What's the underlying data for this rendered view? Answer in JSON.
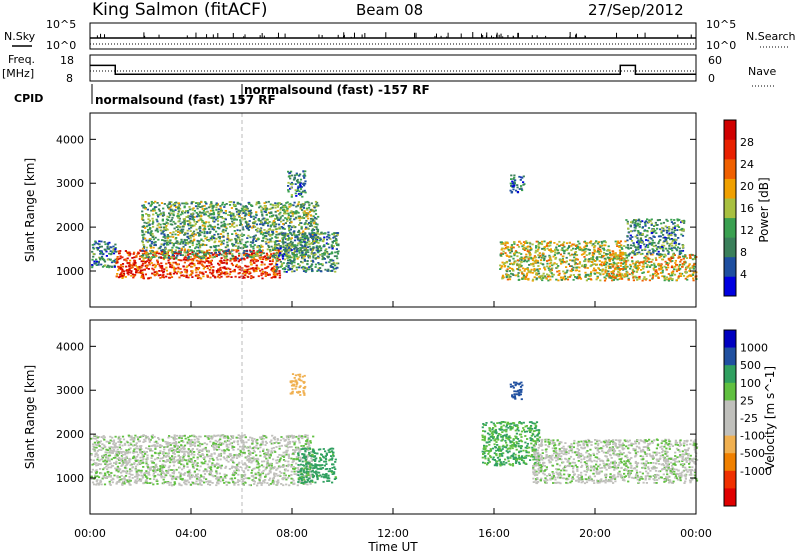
{
  "header": {
    "station": "King Salmon (fitACF)",
    "beam": "Beam 08",
    "date": "27/Sep/2012"
  },
  "strips": {
    "nsky_label": "N.Sky",
    "nsky_ticks": [
      "10^5",
      "10^0"
    ],
    "nsearch_label": "N.Search",
    "nsearch_ticks": [
      "10^5",
      "10^0"
    ],
    "freq_label": "Freq.",
    "freq_unit": "[MHz]",
    "freq_ticks": [
      18,
      8
    ],
    "nave_label": "Nave",
    "nave_ticks": [
      60,
      0
    ],
    "cpid_label": "CPID",
    "cpid_modes": [
      "normalsound (fast) 157 RF",
      "normalsound (fast) -157 RF"
    ],
    "freq_steps": [
      {
        "t0": 0.0,
        "t1": 1.0,
        "mhz": 14.0
      },
      {
        "t0": 1.0,
        "t1": 21.0,
        "mhz": 10.6
      },
      {
        "t0": 21.0,
        "t1": 21.6,
        "mhz": 14.0
      },
      {
        "t0": 21.6,
        "t1": 24.0,
        "mhz": 10.6
      }
    ]
  },
  "colors": {
    "power": [
      "#0000e0",
      "#1e4fa0",
      "#3a7f5a",
      "#3aa050",
      "#a8c040",
      "#f0a000",
      "#f06000",
      "#e82000",
      "#d00000"
    ],
    "velocity": [
      "#e00000",
      "#f03000",
      "#f08000",
      "#f0b050",
      "#c0c0bc",
      "#c0c0bc",
      "#60c040",
      "#30a060",
      "#2050a0",
      "#0000c0"
    ]
  },
  "chart_data": [
    {
      "type": "heatmap",
      "name": "power",
      "ylabel": "Slant Range [km]",
      "xlim": [
        0,
        24
      ],
      "ylim": [
        180,
        4600
      ],
      "yticks": [
        1000,
        2000,
        3000,
        4000
      ],
      "colorbar": {
        "label": "Power [dB]",
        "range": [
          0,
          32
        ],
        "ticks": [
          4,
          8,
          12,
          16,
          20,
          24,
          28
        ]
      },
      "echo_bands": [
        {
          "time": [
            0.0,
            1.0
          ],
          "range": [
            1100,
            1700
          ],
          "power": 9
        },
        {
          "time": [
            1.0,
            7.5
          ],
          "range": [
            850,
            1500
          ],
          "power": 26
        },
        {
          "time": [
            2.0,
            9.0
          ],
          "range": [
            1300,
            2600
          ],
          "power": 12
        },
        {
          "time": [
            7.3,
            9.8
          ],
          "range": [
            1000,
            1900
          ],
          "power": 10
        },
        {
          "time": [
            7.8,
            8.5
          ],
          "range": [
            2700,
            3300
          ],
          "power": 9
        },
        {
          "time": [
            16.2,
            21.2
          ],
          "range": [
            800,
            1700
          ],
          "power": 16
        },
        {
          "time": [
            16.6,
            17.2
          ],
          "range": [
            2800,
            3200
          ],
          "power": 7
        },
        {
          "time": [
            20.5,
            24.0
          ],
          "range": [
            800,
            1400
          ],
          "power": 18
        },
        {
          "time": [
            21.2,
            23.5
          ],
          "range": [
            1400,
            2200
          ],
          "power": 10
        }
      ]
    },
    {
      "type": "heatmap",
      "name": "velocity",
      "xlabel": "Time UT",
      "ylabel": "Slant Range [km]",
      "xlim": [
        0,
        24
      ],
      "ylim": [
        180,
        4600
      ],
      "xticks": [
        "00:00",
        "04:00",
        "08:00",
        "12:00",
        "16:00",
        "20:00",
        "00:00"
      ],
      "yticks": [
        1000,
        2000,
        3000,
        4000
      ],
      "colorbar": {
        "label": "Velocity [m s^-1]",
        "tick_labels": [
          "1000",
          "500",
          "100",
          "25",
          "-25",
          "-100",
          "-500",
          "-1000"
        ]
      },
      "echo_bands": [
        {
          "time": [
            0.0,
            8.8
          ],
          "range": [
            850,
            2000
          ],
          "velocity": 0
        },
        {
          "time": [
            7.9,
            8.5
          ],
          "range": [
            2900,
            3400
          ],
          "velocity": -300
        },
        {
          "time": [
            8.2,
            9.7
          ],
          "range": [
            900,
            1700
          ],
          "velocity": 150
        },
        {
          "time": [
            15.5,
            17.8
          ],
          "range": [
            1300,
            2300
          ],
          "velocity": 100
        },
        {
          "time": [
            16.6,
            17.1
          ],
          "range": [
            2800,
            3200
          ],
          "velocity": 800
        },
        {
          "time": [
            17.5,
            24.0
          ],
          "range": [
            900,
            1900
          ],
          "velocity": 0
        }
      ]
    }
  ]
}
